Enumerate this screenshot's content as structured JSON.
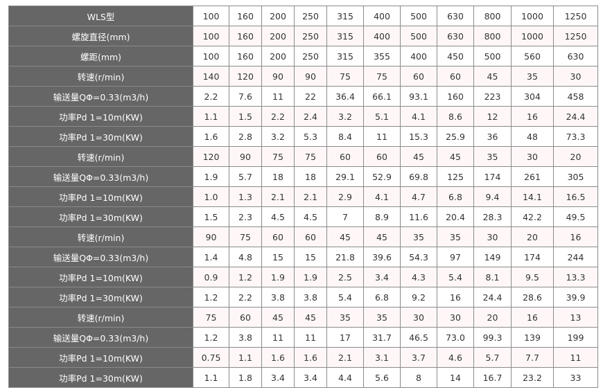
{
  "table": {
    "rows": [
      {
        "label": "WLS型",
        "values": [
          "100",
          "160",
          "200",
          "250",
          "315",
          "400",
          "500",
          "630",
          "800",
          "1000",
          "1250"
        ]
      },
      {
        "label": "螺旋直径(mm)",
        "values": [
          "100",
          "160",
          "200",
          "250",
          "315",
          "400",
          "500",
          "630",
          "800",
          "1000",
          "1250"
        ]
      },
      {
        "label": "螺距(mm)",
        "values": [
          "100",
          "160",
          "200",
          "250",
          "315",
          "355",
          "400",
          "450",
          "500",
          "560",
          "630"
        ]
      },
      {
        "label": "转速(r/min)",
        "values": [
          "140",
          "120",
          "90",
          "90",
          "75",
          "75",
          "60",
          "60",
          "45",
          "35",
          "30"
        ]
      },
      {
        "label": "输送量QΦ=0.33(m3/h)",
        "values": [
          "2.2",
          "7.6",
          "11",
          "22",
          "36.4",
          "66.1",
          "93.1",
          "160",
          "223",
          "304",
          "458"
        ]
      },
      {
        "label": "功率Pd 1=10m(KW)",
        "values": [
          "1.1",
          "1.5",
          "2.2",
          "2.4",
          "3.2",
          "5.1",
          "4.1",
          "8.6",
          "12",
          "16",
          "24.4"
        ]
      },
      {
        "label": "功率Pd 1=30m(KW)",
        "values": [
          "1.6",
          "2.8",
          "3.2",
          "5.3",
          "8.4",
          "11",
          "15.3",
          "25.9",
          "36",
          "48",
          "73.3"
        ]
      },
      {
        "label": "转速(r/min)",
        "values": [
          "120",
          "90",
          "75",
          "75",
          "60",
          "60",
          "45",
          "45",
          "35",
          "30",
          "20"
        ]
      },
      {
        "label": "输送量QΦ=0.33(m3/h)",
        "values": [
          "1.9",
          "5.7",
          "18",
          "18",
          "29.1",
          "52.9",
          "69.8",
          "125",
          "174",
          "261",
          "305"
        ]
      },
      {
        "label": "功率Pd 1=10m(KW)",
        "values": [
          "1.0",
          "1.3",
          "2.1",
          "2.1",
          "2.9",
          "4.1",
          "4.7",
          "6.8",
          "9.4",
          "14.1",
          "16.5"
        ]
      },
      {
        "label": "功率Pd 1=30m(KW)",
        "values": [
          "1.5",
          "2.3",
          "4.5",
          "4.5",
          "7",
          "8.9",
          "11.6",
          "20.4",
          "28.3",
          "42.2",
          "49.5"
        ]
      },
      {
        "label": "转速(r/min)",
        "values": [
          "90",
          "75",
          "60",
          "60",
          "45",
          "45",
          "35",
          "35",
          "30",
          "20",
          "16"
        ]
      },
      {
        "label": "输送量QΦ=0.33(m3/h)",
        "values": [
          "1.4",
          "4.8",
          "15",
          "15",
          "21.8",
          "39.6",
          "54.3",
          "97",
          "149",
          "174",
          "244"
        ]
      },
      {
        "label": "功率Pd 1=10m(KW)",
        "values": [
          "0.9",
          "1.2",
          "1.9",
          "1.9",
          "2.5",
          "3.4",
          "4.3",
          "5.4",
          "8.1",
          "9.5",
          "13.3"
        ]
      },
      {
        "label": "功率Pd 1=30m(KW)",
        "values": [
          "1.2",
          "2.2",
          "3.8",
          "3.8",
          "5.4",
          "6.8",
          "9.2",
          "16",
          "24.4",
          "28.6",
          "39.9"
        ]
      },
      {
        "label": "转速(r/min)",
        "values": [
          "75",
          "60",
          "45",
          "45",
          "35",
          "35",
          "30",
          "30",
          "20",
          "16",
          "13"
        ]
      },
      {
        "label": "输送量QΦ=0.33(m3/h)",
        "values": [
          "1.2",
          "3.8",
          "11",
          "11",
          "17",
          "31.7",
          "46.5",
          "73.0",
          "99.3",
          "139",
          "199"
        ]
      },
      {
        "label": "功率Pd 1=10m(KW)",
        "values": [
          "0.75",
          "1.1",
          "1.6",
          "1.6",
          "2.1",
          "3.1",
          "3.7",
          "4.6",
          "5.7",
          "7.7",
          "11"
        ]
      },
      {
        "label": "功率Pd 1=30m(KW)",
        "values": [
          "1.1",
          "1.8",
          "3.4",
          "3.4",
          "4.4",
          "5.6",
          "8",
          "14",
          "16.7",
          "23.2",
          "33"
        ]
      }
    ]
  }
}
